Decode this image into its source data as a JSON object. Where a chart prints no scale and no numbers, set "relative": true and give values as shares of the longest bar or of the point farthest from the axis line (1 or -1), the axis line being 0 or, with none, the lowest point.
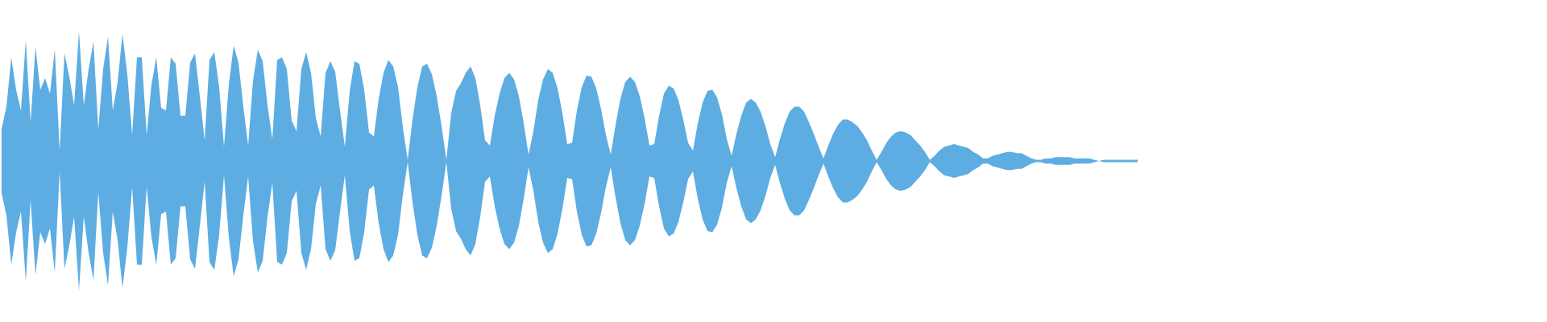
{
  "chart_data": {
    "type": "area",
    "relative": true,
    "categories": [
      null,
      null,
      null,
      null,
      null,
      null,
      null,
      null,
      null,
      null,
      null,
      null,
      null,
      null,
      null,
      null,
      null,
      null,
      null,
      null,
      null,
      null,
      null,
      null,
      null,
      null,
      null,
      null,
      null,
      null,
      null,
      null,
      null,
      null,
      null,
      null,
      null,
      null,
      null,
      null,
      null,
      null,
      null,
      null,
      null,
      null,
      null,
      null,
      null,
      null,
      null,
      null,
      null,
      null,
      null,
      null,
      null,
      null,
      null,
      null,
      null,
      null,
      null,
      null,
      null,
      null,
      null,
      null,
      null,
      null,
      null,
      null,
      null,
      null,
      null,
      null,
      null,
      null,
      null,
      null,
      null,
      null,
      null,
      null,
      null,
      null,
      null,
      null,
      null,
      null,
      null,
      null,
      null,
      null,
      null,
      null,
      null,
      null,
      null,
      null,
      null,
      null,
      null,
      null,
      null,
      null,
      null,
      null,
      null,
      null,
      null,
      null,
      null,
      null,
      null,
      null,
      null,
      null,
      null,
      null,
      null,
      null,
      null,
      null,
      null,
      null,
      null,
      null,
      null,
      null,
      null,
      null,
      null,
      null,
      null,
      null,
      null,
      null,
      null,
      null,
      null,
      null,
      null,
      null,
      null,
      null,
      null,
      null,
      null,
      null,
      null,
      null,
      null,
      null,
      null,
      null,
      null,
      null,
      null,
      null,
      null,
      null,
      null,
      null,
      null,
      null,
      null,
      null,
      null,
      null,
      null,
      null,
      null,
      null,
      null,
      null,
      null,
      null,
      null,
      null,
      null,
      null,
      null,
      null,
      null,
      null,
      null,
      null,
      null,
      null,
      null,
      null,
      null,
      null,
      null,
      null,
      null,
      null,
      null,
      null,
      null,
      null,
      null,
      null,
      null,
      null,
      null,
      null,
      null,
      null,
      null,
      null,
      null,
      null,
      null,
      null,
      null,
      null,
      null,
      null,
      null,
      null,
      null,
      null,
      null,
      null,
      null,
      null,
      null,
      null,
      null,
      null,
      null,
      null,
      null,
      null
    ],
    "series": [
      {
        "color": "#5dade2",
        "values": [
          0.25,
          0.42,
          0.8,
          0.55,
          0.39,
          0.93,
          0.3,
          0.88,
          0.55,
          0.64,
          0.52,
          0.86,
          0.08,
          0.83,
          0.65,
          0.43,
          1,
          0.43,
          0.71,
          0.92,
          0.24,
          0.71,
          0.96,
          0.39,
          0.61,
          0.98,
          0.67,
          0.2,
          0.8,
          0.8,
          0.2,
          0.59,
          0.8,
          0.41,
          0.39,
          0.8,
          0.75,
          0.35,
          0.35,
          0.76,
          0.83,
          0.5,
          0.16,
          0.78,
          0.84,
          0.57,
          0.11,
          0.59,
          0.89,
          0.76,
          0.42,
          0.12,
          0.62,
          0.86,
          0.77,
          0.43,
          0.17,
          0.78,
          0.8,
          0.71,
          0.31,
          0.23,
          0.71,
          0.84,
          0.68,
          0.33,
          0.19,
          0.68,
          0.77,
          0.69,
          0.39,
          0.11,
          0.54,
          0.77,
          0.75,
          0.55,
          0.22,
          0.19,
          0.48,
          0.68,
          0.78,
          0.73,
          0.57,
          0.26,
          0.01,
          0.32,
          0.57,
          0.73,
          0.75,
          0.67,
          0.5,
          0.27,
          0.01,
          0.37,
          0.54,
          0.6,
          0.68,
          0.73,
          0.64,
          0.43,
          0.16,
          0.12,
          0.35,
          0.52,
          0.64,
          0.68,
          0.63,
          0.5,
          0.29,
          0.05,
          0.23,
          0.47,
          0.63,
          0.71,
          0.68,
          0.56,
          0.37,
          0.13,
          0.14,
          0.39,
          0.57,
          0.66,
          0.65,
          0.56,
          0.4,
          0.2,
          0.05,
          0.28,
          0.48,
          0.61,
          0.65,
          0.61,
          0.5,
          0.33,
          0.12,
          0.13,
          0.35,
          0.52,
          0.58,
          0.56,
          0.47,
          0.32,
          0.14,
          0.08,
          0.29,
          0.45,
          0.54,
          0.55,
          0.49,
          0.36,
          0.17,
          0.04,
          0.21,
          0.35,
          0.45,
          0.48,
          0.45,
          0.38,
          0.27,
          0.13,
          0.03,
          0.17,
          0.29,
          0.38,
          0.42,
          0.42,
          0.38,
          0.3,
          0.21,
          0.11,
          0.02,
          0.12,
          0.21,
          0.28,
          0.32,
          0.32,
          0.3,
          0.27,
          0.22,
          0.16,
          0.08,
          0.01,
          0.07,
          0.14,
          0.19,
          0.22,
          0.23,
          0.22,
          0.2,
          0.16,
          0.12,
          0.07,
          0.01,
          0.04,
          0.08,
          0.11,
          0.12,
          0.13,
          0.12,
          0.11,
          0.1,
          0.07,
          0.05,
          0.02,
          0.02,
          0.04,
          0.05,
          0.06,
          0.07,
          0.07,
          0.06,
          0.06,
          0.04,
          0.02,
          0.01,
          0.01,
          0.02,
          0.02,
          0.03,
          0.03,
          0.03,
          0.03,
          0.02,
          0.02,
          0.02,
          0.02,
          0.01,
          0,
          0.01,
          0.01,
          0.01,
          0.01,
          0.01,
          0.01,
          0.01,
          0.01
        ]
      }
    ]
  }
}
